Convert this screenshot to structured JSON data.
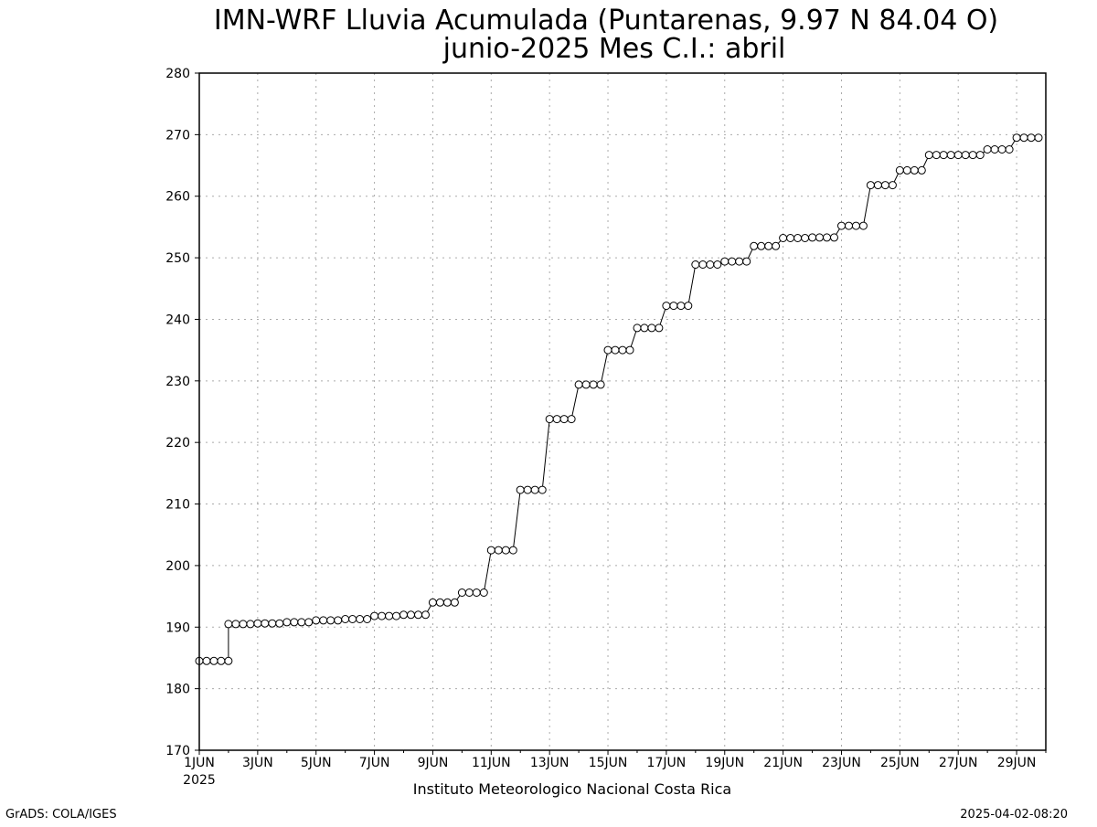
{
  "chart_data": {
    "type": "line",
    "title_line1": "IMN-WRF  Lluvia Acumulada (Puntarenas, 9.97  N 84.04  O)",
    "title_line2": "junio-2025 Mes C.I.: abril",
    "xlabel": "",
    "ylabel": "",
    "ylim": [
      170,
      280
    ],
    "yticks": [
      170,
      180,
      190,
      200,
      210,
      220,
      230,
      240,
      250,
      260,
      270,
      280
    ],
    "xlim_days": [
      1,
      30
    ],
    "xtick_labels": [
      "1JUN",
      "3JUN",
      "5JUN",
      "7JUN",
      "9JUN",
      "11JUN",
      "13JUN",
      "15JUN",
      "17JUN",
      "19JUN",
      "21JUN",
      "23JUN",
      "25JUN",
      "27JUN",
      "29JUN"
    ],
    "xtick_year_label": "2025",
    "grid": true,
    "grid_style": "dotted",
    "marker": "open-circle",
    "line_color": "#000000",
    "series": [
      {
        "values_by_day": [
          [
            184.5,
            184.5,
            184.5,
            184.5,
            184.5
          ],
          [
            190.5,
            190.5,
            190.5,
            190.5
          ],
          [
            190.6,
            190.6,
            190.6,
            190.6
          ],
          [
            190.8,
            190.8,
            190.8,
            190.8
          ],
          [
            191.1,
            191.1,
            191.1,
            191.1
          ],
          [
            191.3,
            191.3,
            191.3,
            191.3
          ],
          [
            191.8,
            191.8,
            191.8,
            191.8
          ],
          [
            192.0,
            192.0,
            192.0,
            192.0
          ],
          [
            194.0,
            194.0,
            194.0,
            194.0
          ],
          [
            195.6,
            195.6,
            195.6,
            195.6
          ],
          [
            202.5,
            202.5,
            202.5,
            202.5
          ],
          [
            212.3,
            212.3,
            212.3,
            212.3
          ],
          [
            223.8,
            223.8,
            223.8,
            223.8
          ],
          [
            229.4,
            229.4,
            229.4,
            229.4
          ],
          [
            235.0,
            235.0,
            235.0,
            235.0
          ],
          [
            238.6,
            238.6,
            238.6,
            238.6
          ],
          [
            242.2,
            242.2,
            242.2,
            242.2
          ],
          [
            248.9,
            248.9,
            248.9,
            248.9
          ],
          [
            249.4,
            249.4,
            249.4,
            249.4
          ],
          [
            251.9,
            251.9,
            251.9,
            251.9
          ],
          [
            253.2,
            253.2,
            253.2,
            253.2
          ],
          [
            253.3,
            253.3,
            253.3,
            253.3
          ],
          [
            255.2,
            255.2,
            255.2,
            255.2
          ],
          [
            261.8,
            261.8,
            261.8,
            261.8
          ],
          [
            264.2,
            264.2,
            264.2,
            264.2
          ],
          [
            266.7,
            266.7,
            266.7,
            266.7
          ],
          [
            266.7,
            266.7,
            266.7,
            266.7
          ],
          [
            267.6,
            267.6,
            267.6,
            267.6
          ],
          [
            269.5,
            269.5,
            269.5,
            269.5
          ]
        ]
      }
    ]
  },
  "footer": {
    "institution": "Instituto Meteorologico Nacional Costa Rica",
    "software": "GrADS: COLA/IGES",
    "timestamp": "2025-04-02-08:20"
  }
}
